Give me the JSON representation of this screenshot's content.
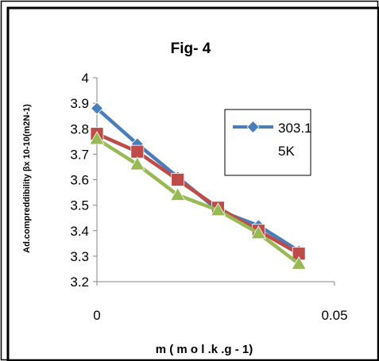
{
  "chart_data": {
    "type": "line",
    "title": "Fig- 4",
    "xlabel": "m ( m o l .k .g - 1)",
    "ylabel": "Ad.compreddibility βx 10-10(m2N-1)",
    "xlim": [
      0,
      0.05
    ],
    "ylim": [
      3.2,
      4.0
    ],
    "x_ticks": [
      "0",
      "0.05"
    ],
    "y_ticks": [
      "3.2",
      "3.3",
      "3.4",
      "3.5",
      "3.6",
      "3.7",
      "3.8",
      "3.9",
      "4"
    ],
    "grid": false,
    "legend_position": "right",
    "legend_text": [
      "303.1",
      "5K"
    ],
    "series": [
      {
        "name": "303.15K",
        "color": "#4a7ebb",
        "marker": "diamond",
        "x": [
          0,
          0.0085,
          0.017,
          0.0255,
          0.034,
          0.0425
        ],
        "values": [
          3.88,
          3.74,
          3.61,
          3.48,
          3.42,
          3.32
        ]
      },
      {
        "color": "#be4b48",
        "marker": "square",
        "x": [
          0,
          0.0085,
          0.017,
          0.0255,
          0.034,
          0.0425
        ],
        "values": [
          3.78,
          3.71,
          3.6,
          3.49,
          3.4,
          3.31
        ]
      },
      {
        "color": "#98b954",
        "marker": "triangle",
        "x": [
          0,
          0.0085,
          0.017,
          0.0255,
          0.034,
          0.0425
        ],
        "values": [
          3.76,
          3.66,
          3.54,
          3.48,
          3.39,
          3.27
        ]
      }
    ]
  }
}
